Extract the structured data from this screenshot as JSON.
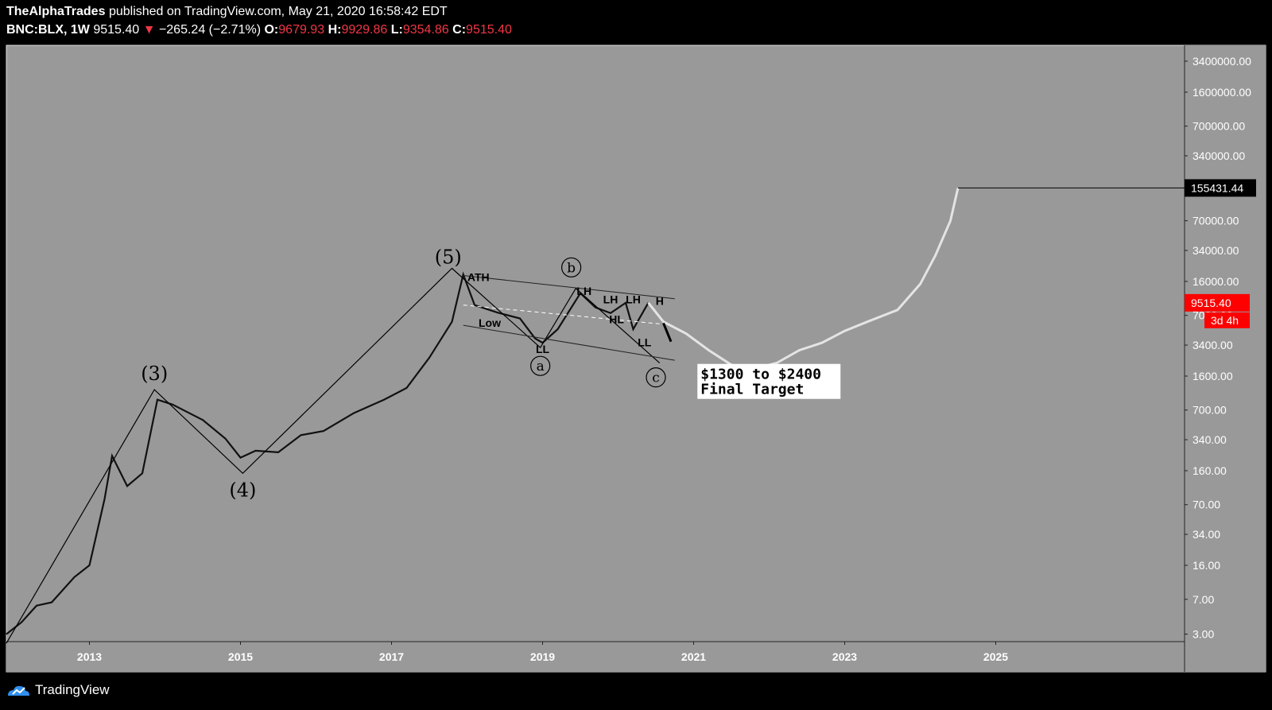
{
  "header": {
    "author": "TheAlphaTrades",
    "published": "published on TradingView.com, May 21, 2020 16:58:42 EDT",
    "symbol": "BNC:BLX, 1W",
    "last": "9515.40",
    "change": "−265.24 (−2.71%)",
    "o_label": "O:",
    "o_value": "9679.93",
    "h_label": "H:",
    "h_value": "9929.86",
    "l_label": "L:",
    "l_value": "9354.86",
    "c_label": "C:",
    "c_value": "9515.40",
    "down_icon": "triangle-down-icon"
  },
  "footer": {
    "brand": "TradingView",
    "logo_icon": "tradingview-cloud-icon"
  },
  "colors": {
    "chart_bg": "#999999",
    "page_bg": "#000000",
    "candle": "#111111",
    "projection": "#e4e4e4",
    "price_tag": "#ff0000",
    "label_tag": "#000000"
  },
  "chart_data": {
    "type": "line",
    "scale": "log",
    "ylim": [
      2.5,
      5000000
    ],
    "xlim": [
      2011.9,
      2027.5
    ],
    "y_ticks": [
      {
        "v": 3400000,
        "t": "3400000.00"
      },
      {
        "v": 1600000,
        "t": "1600000.00"
      },
      {
        "v": 700000,
        "t": "700000.00"
      },
      {
        "v": 340000,
        "t": "340000.00"
      },
      {
        "v": 70000,
        "t": "70000.00"
      },
      {
        "v": 34000,
        "t": "34000.00"
      },
      {
        "v": 16000,
        "t": "16000.00"
      },
      {
        "v": 7000,
        "t": "7000.00"
      },
      {
        "v": 3400,
        "t": "3400.00"
      },
      {
        "v": 1600,
        "t": "1600.00"
      },
      {
        "v": 700,
        "t": "700.00"
      },
      {
        "v": 340,
        "t": "340.00"
      },
      {
        "v": 160,
        "t": "160.00"
      },
      {
        "v": 70,
        "t": "70.00"
      },
      {
        "v": 34,
        "t": "34.00"
      },
      {
        "v": 16,
        "t": "16.00"
      },
      {
        "v": 7,
        "t": "7.00"
      },
      {
        "v": 3,
        "t": "3.00"
      }
    ],
    "x_ticks": [
      "2013",
      "2015",
      "2017",
      "2019",
      "2021",
      "2023",
      "2025"
    ],
    "price_series": [
      [
        2011.9,
        3
      ],
      [
        2012.1,
        4
      ],
      [
        2012.3,
        6
      ],
      [
        2012.5,
        6.5
      ],
      [
        2012.8,
        12
      ],
      [
        2013.0,
        16
      ],
      [
        2013.2,
        80
      ],
      [
        2013.3,
        230
      ],
      [
        2013.5,
        110
      ],
      [
        2013.7,
        150
      ],
      [
        2013.9,
        900
      ],
      [
        2014.1,
        800
      ],
      [
        2014.5,
        550
      ],
      [
        2014.8,
        350
      ],
      [
        2015.0,
        220
      ],
      [
        2015.2,
        260
      ],
      [
        2015.5,
        250
      ],
      [
        2015.8,
        380
      ],
      [
        2016.1,
        420
      ],
      [
        2016.5,
        650
      ],
      [
        2016.9,
        900
      ],
      [
        2017.2,
        1200
      ],
      [
        2017.5,
        2500
      ],
      [
        2017.8,
        6000
      ],
      [
        2017.95,
        19000
      ],
      [
        2018.1,
        9000
      ],
      [
        2018.4,
        7500
      ],
      [
        2018.7,
        6500
      ],
      [
        2018.9,
        4000
      ],
      [
        2019.0,
        3600
      ],
      [
        2019.2,
        5000
      ],
      [
        2019.5,
        12000
      ],
      [
        2019.7,
        8500
      ],
      [
        2019.9,
        7400
      ],
      [
        2020.1,
        9500
      ],
      [
        2020.2,
        5000
      ],
      [
        2020.4,
        9515
      ]
    ],
    "projection_series": [
      [
        2020.4,
        9515
      ],
      [
        2020.6,
        6000
      ],
      [
        2020.9,
        4500
      ],
      [
        2021.2,
        3000
      ],
      [
        2021.5,
        2100
      ],
      [
        2021.8,
        1900
      ],
      [
        2022.1,
        2200
      ],
      [
        2022.4,
        3000
      ],
      [
        2022.7,
        3600
      ],
      [
        2023.0,
        4800
      ],
      [
        2023.3,
        6000
      ],
      [
        2023.7,
        8000
      ],
      [
        2024.0,
        15000
      ],
      [
        2024.2,
        30000
      ],
      [
        2024.4,
        70000
      ],
      [
        2024.5,
        155431
      ]
    ],
    "annotations": {
      "w3": {
        "text": "(3)",
        "x": 2013.86,
        "y": 1150
      },
      "w4": {
        "text": "(4)",
        "x": 2015.03,
        "y": 165
      },
      "w5": {
        "text": "(5)",
        "x": 2017.75,
        "y": 19500
      },
      "ath": {
        "text": "ATH"
      },
      "low": {
        "text": "Low"
      },
      "ll": {
        "text": "LL"
      },
      "lh1": {
        "text": "LH"
      },
      "lh2": {
        "text": "LH"
      },
      "lh3": {
        "text": "LH"
      },
      "lh4": {
        "text": "H"
      },
      "hl": {
        "text": "HL"
      },
      "ll2": {
        "text": "LL"
      },
      "a": {
        "text": "a"
      },
      "b": {
        "text": "b"
      },
      "c": {
        "text": "c"
      }
    },
    "target_box": {
      "line1": "$1300 to $2400",
      "line2": "Final Target"
    },
    "last_price_tag": {
      "text": "9515.40",
      "v": 9515
    },
    "countdown_tag": {
      "text": "3d 4h"
    },
    "target_price_tag": {
      "text": "155431.44",
      "v": 155431
    }
  }
}
